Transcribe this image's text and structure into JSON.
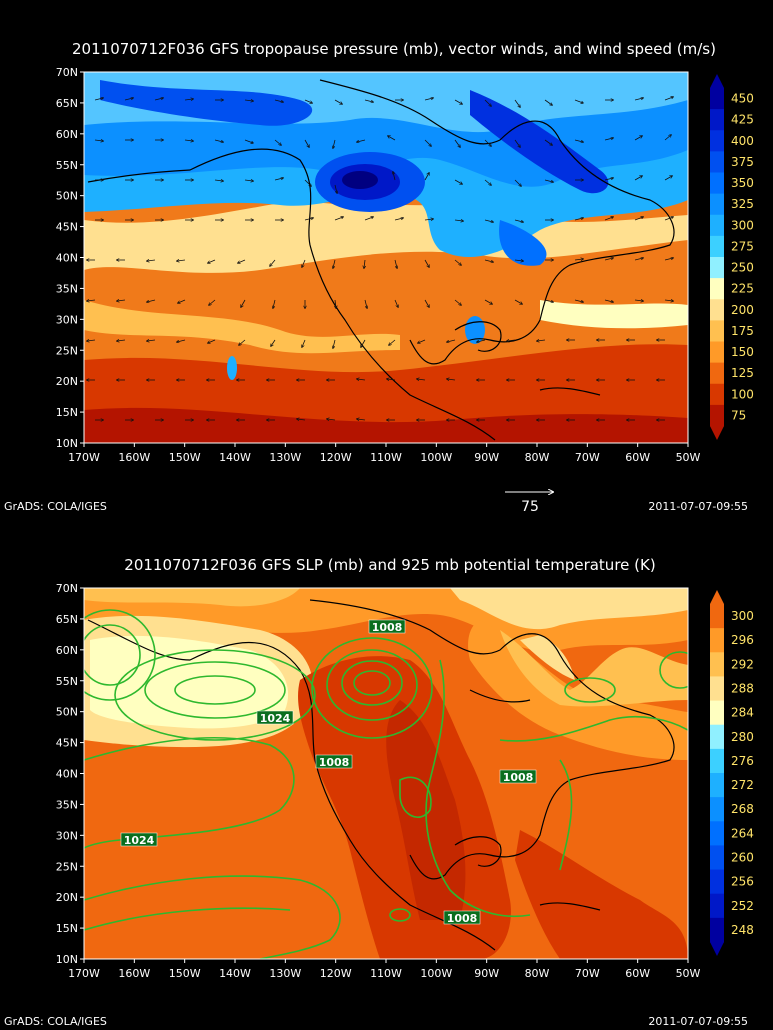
{
  "panel1": {
    "title": "2011070712F036 GFS tropopause pressure (mb), vector winds, and wind speed (m/s)",
    "lat_labels": [
      "70N",
      "65N",
      "60N",
      "55N",
      "50N",
      "45N",
      "40N",
      "35N",
      "30N",
      "25N",
      "20N",
      "15N",
      "10N"
    ],
    "lon_labels": [
      "170W",
      "160W",
      "150W",
      "140W",
      "130W",
      "120W",
      "110W",
      "100W",
      "90W",
      "80W",
      "70W",
      "60W",
      "50W"
    ],
    "colorbar": {
      "labels": [
        "450",
        "425",
        "400",
        "375",
        "350",
        "325",
        "300",
        "275",
        "250",
        "225",
        "200",
        "175",
        "150",
        "125",
        "100",
        "75"
      ],
      "colors": [
        "#0000a0",
        "#0018c8",
        "#0030e0",
        "#0050f0",
        "#0070ff",
        "#0c90ff",
        "#1eb0ff",
        "#3cd0ff",
        "#90f0ff",
        "#ffffc0",
        "#ffe090",
        "#ffc050",
        "#ff9a28",
        "#f06810",
        "#d83800",
        "#b41400"
      ]
    },
    "vector_ref": "75",
    "credit": "GrADS: COLA/IGES",
    "timestamp": "2011-07-07-09:55"
  },
  "panel2": {
    "title": "2011070712F036 GFS SLP (mb) and 925 mb potential temperature (K)",
    "lat_labels": [
      "70N",
      "65N",
      "60N",
      "55N",
      "50N",
      "45N",
      "40N",
      "35N",
      "30N",
      "25N",
      "20N",
      "15N",
      "10N"
    ],
    "lon_labels": [
      "170W",
      "160W",
      "150W",
      "140W",
      "130W",
      "120W",
      "110W",
      "100W",
      "90W",
      "80W",
      "70W",
      "60W",
      "50W"
    ],
    "colorbar": {
      "labels": [
        "300",
        "296",
        "292",
        "288",
        "284",
        "280",
        "276",
        "272",
        "268",
        "264",
        "260",
        "256",
        "252",
        "248"
      ],
      "colors": [
        "#f06810",
        "#ff9a28",
        "#ffc050",
        "#ffe090",
        "#ffffc0",
        "#90f0ff",
        "#3cd0ff",
        "#1eb0ff",
        "#0c90ff",
        "#0070ff",
        "#0050f0",
        "#0030e0",
        "#0018c8",
        "#0000a0"
      ]
    },
    "contour_labels": [
      "1008",
      "1024",
      "1008",
      "1008",
      "1024",
      "1008"
    ],
    "credit": "GrADS: COLA/IGES",
    "timestamp": "2011-07-07-09:55"
  }
}
